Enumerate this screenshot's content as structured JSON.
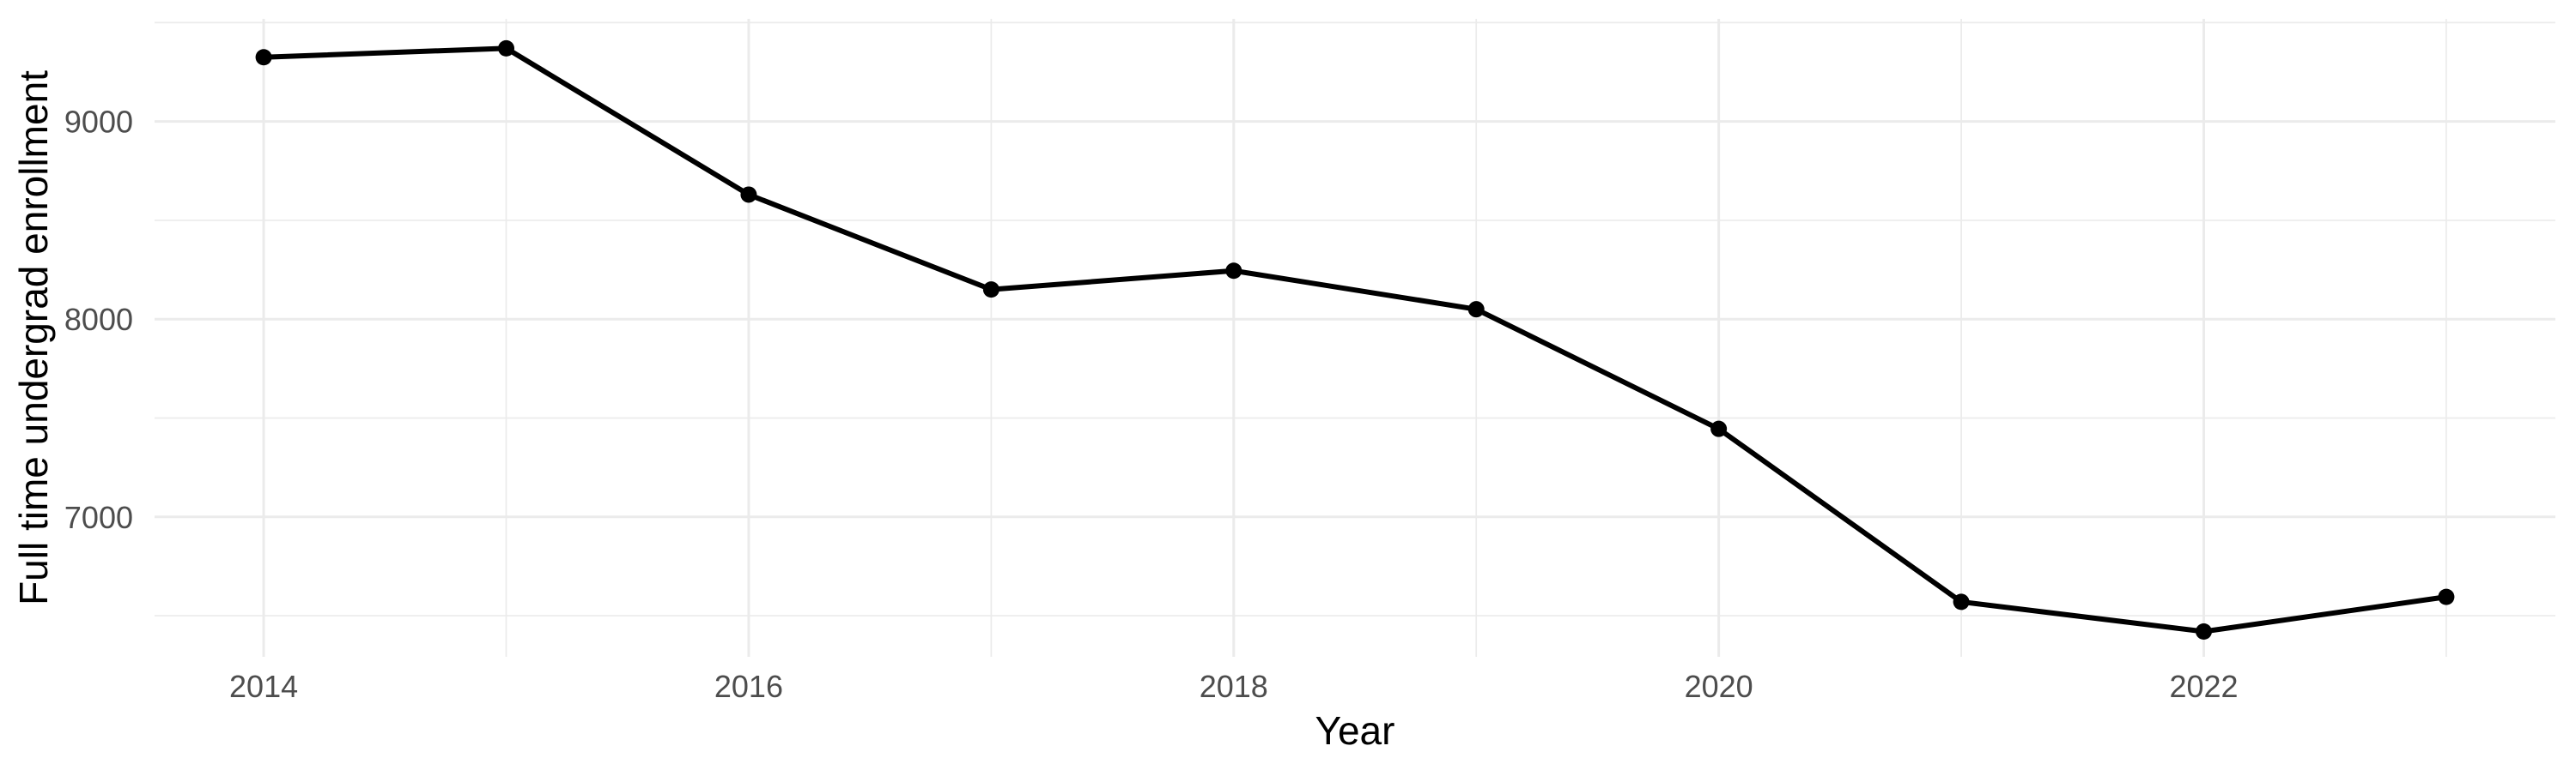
{
  "figure": {
    "background_color": "#ffffff",
    "title": ""
  },
  "chart_data": {
    "type": "line",
    "title": "",
    "xlabel": "Year",
    "ylabel": "Full time undergrad enrollment",
    "x": [
      2014,
      2015,
      2016,
      2017,
      2018,
      2019,
      2020,
      2021,
      2022,
      2023
    ],
    "values": [
      9325,
      9370,
      8630,
      8150,
      8245,
      8050,
      7445,
      6570,
      6420,
      6595
    ],
    "series_name": "Full time undergrad enrollment",
    "x_ticks": {
      "major": [
        2014,
        2016,
        2018,
        2020,
        2022
      ],
      "minor": [
        2015,
        2017,
        2019,
        2021,
        2023
      ],
      "labels": [
        "2014",
        "2016",
        "2018",
        "2020",
        "2022"
      ]
    },
    "y_ticks": {
      "major": [
        7000,
        8000,
        9000
      ],
      "minor": [
        6500,
        7500,
        8500,
        9500
      ],
      "labels": [
        "7000",
        "8000",
        "9000"
      ]
    },
    "xlim": [
      2013.55,
      2023.45
    ],
    "ylim": [
      6292,
      9519
    ],
    "grid": "on",
    "legend": "none",
    "style": {
      "line_color": "#000000",
      "point_color": "#000000",
      "grid_color": "#ebebeb",
      "tick_label_color": "#4d4d4d",
      "axis_title_color": "#000000"
    }
  }
}
